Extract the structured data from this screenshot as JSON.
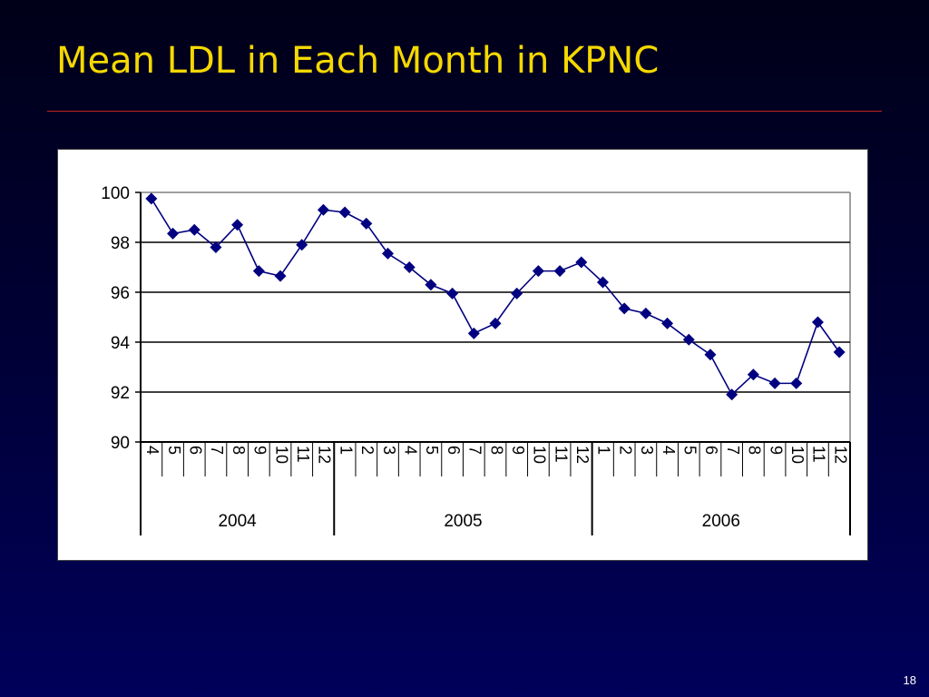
{
  "slide": {
    "title": "Mean LDL in Each Month in KPNC",
    "number": "18"
  },
  "colors": {
    "title": "#f5d800",
    "rule": "#c0261c",
    "series": "#000080",
    "grid": "#000000"
  },
  "chart_data": {
    "type": "line",
    "title": "",
    "xlabel": "",
    "ylabel": "",
    "ylim": [
      90,
      100
    ],
    "yticks": [
      90,
      92,
      94,
      96,
      98,
      100
    ],
    "grid": "horizontal",
    "groups": [
      {
        "label": "2004",
        "months": [
          "4",
          "5",
          "6",
          "7",
          "8",
          "9",
          "10",
          "11",
          "12"
        ]
      },
      {
        "label": "2005",
        "months": [
          "1",
          "2",
          "3",
          "4",
          "5",
          "6",
          "7",
          "8",
          "9",
          "10",
          "11",
          "12"
        ]
      },
      {
        "label": "2006",
        "months": [
          "1",
          "2",
          "3",
          "4",
          "5",
          "6",
          "7",
          "8",
          "9",
          "10",
          "11",
          "12"
        ]
      }
    ],
    "series": [
      {
        "marker": "diamond",
        "values": [
          99.75,
          98.35,
          98.5,
          97.8,
          98.7,
          96.85,
          96.65,
          97.9,
          99.3,
          99.2,
          98.75,
          97.55,
          97.0,
          96.3,
          95.95,
          94.35,
          94.75,
          95.95,
          96.85,
          96.85,
          97.2,
          96.4,
          95.35,
          95.15,
          94.75,
          94.1,
          93.5,
          91.9,
          92.7,
          92.35,
          92.35,
          94.8,
          93.6
        ]
      }
    ]
  }
}
